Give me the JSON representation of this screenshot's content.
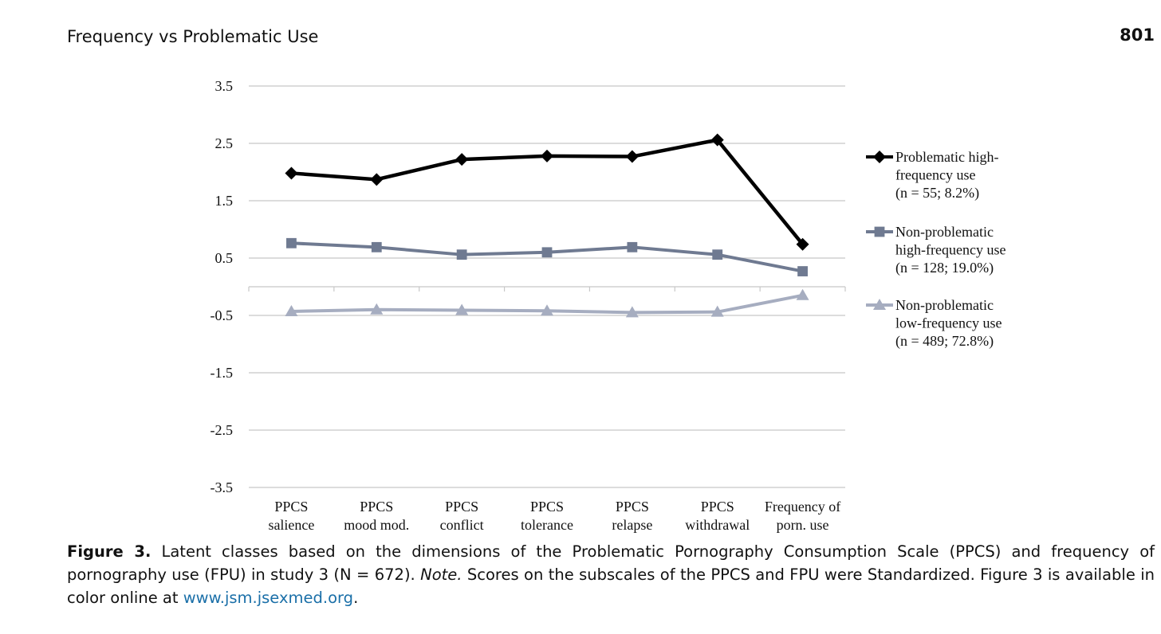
{
  "header": {
    "running_title": "Frequency vs Problematic Use",
    "page_number": "801"
  },
  "caption": {
    "figure_label": "Figure 3.",
    "text_part1": " Latent classes based on the dimensions of the Problematic Pornography Consumption Scale (PPCS) and frequency of pornography use (FPU) in study 3 (N = 672). ",
    "note_label": "Note.",
    "text_part2": " Scores on the subscales of the PPCS and FPU were Standardized. Figure 3 is available in color online at ",
    "link_text": "www.jsm.jsexmed.org",
    "text_end": "."
  },
  "chart_data": {
    "type": "line",
    "title": "",
    "xlabel": "",
    "ylabel": "",
    "ylim": [
      -3.5,
      3.5
    ],
    "yticks": [
      3.5,
      2.5,
      1.5,
      0.5,
      -0.5,
      -1.5,
      -2.5,
      -3.5
    ],
    "ytick_labels": [
      "3.5",
      "2.5",
      "1.5",
      "0.5",
      "-0.5",
      "-1.5",
      "-2.5",
      "-3.5"
    ],
    "grid": true,
    "legend_position": "right",
    "categories": [
      [
        "PPCS",
        "salience"
      ],
      [
        "PPCS",
        "mood mod."
      ],
      [
        "PPCS",
        "conflict"
      ],
      [
        "PPCS",
        "tolerance"
      ],
      [
        "PPCS",
        "relapse"
      ],
      [
        "PPCS",
        "withdrawal"
      ],
      [
        "Frequency of",
        "porn. use"
      ]
    ],
    "series": [
      {
        "name": [
          "Problematic high-",
          "frequency use",
          "(n = 55; 8.2%)"
        ],
        "values": [
          1.98,
          1.87,
          2.22,
          2.28,
          2.27,
          2.56,
          0.74
        ],
        "color": "#000000",
        "marker": "diamond"
      },
      {
        "name": [
          "Non-problematic",
          "high-frequency use",
          "(n = 128; 19.0%)"
        ],
        "values": [
          0.76,
          0.69,
          0.56,
          0.6,
          0.69,
          0.56,
          0.27
        ],
        "color": "#6f7a91",
        "marker": "square"
      },
      {
        "name": [
          "Non-problematic",
          "low-frequency use",
          "(n = 489; 72.8%)"
        ],
        "values": [
          -0.43,
          -0.4,
          -0.41,
          -0.42,
          -0.45,
          -0.44,
          -0.15
        ],
        "color": "#a6adc0",
        "marker": "triangle"
      }
    ]
  }
}
